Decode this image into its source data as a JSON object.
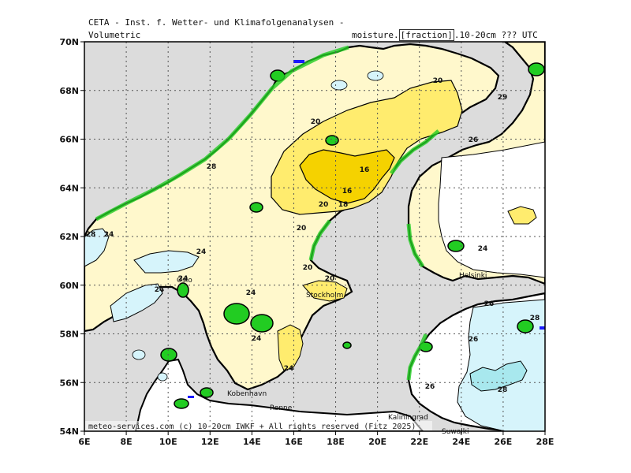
{
  "header": {
    "title": "CETA - Inst. f. Wetter- und Klimafolgenanalysen -",
    "left_label": "Volumetric",
    "param_prefix": "moisture.",
    "param_unit": "[fraction]",
    "param_suffix": ".10-20cm ??? UTC"
  },
  "footer": "meteo-services.com (c) 10-20cm IWKF + All rights reserved (Fitz 2025)",
  "axes": {
    "lat_ticks": [
      "70N",
      "68N",
      "66N",
      "64N",
      "62N",
      "60N",
      "58N",
      "56N",
      "54N"
    ],
    "lon_ticks": [
      "6E",
      "8E",
      "10E",
      "12E",
      "14E",
      "16E",
      "18E",
      "20E",
      "22E",
      "24E",
      "26E",
      "28E"
    ]
  },
  "legend_colors": {
    "dry_16": "#f5d200",
    "mid_18": "#ffec6e",
    "mid_20": "#fff8cc",
    "moist_24": "#ffffff",
    "wet_26": "#d6f4fb",
    "wet_28": "#a8e8ee",
    "saturated": "#22cc22",
    "sea": "#dcdcdc",
    "water_blue": "#1a1aff"
  },
  "places": [
    {
      "name": "Oslo"
    },
    {
      "name": "Stockholm"
    },
    {
      "name": "Helsinki"
    },
    {
      "name": "Kobenhavn"
    },
    {
      "name": "Ronne"
    },
    {
      "name": "Kaliningrad"
    },
    {
      "name": "Suwalki"
    }
  ],
  "contour_labels": [
    "20",
    "29",
    "20",
    "16",
    "16",
    "18",
    "20",
    "24",
    "24",
    "20",
    "24",
    "24",
    "24",
    "20",
    "26",
    "24",
    "24",
    "26",
    "26",
    "28",
    "26",
    "28",
    "28",
    "24",
    "20",
    "28"
  ]
}
